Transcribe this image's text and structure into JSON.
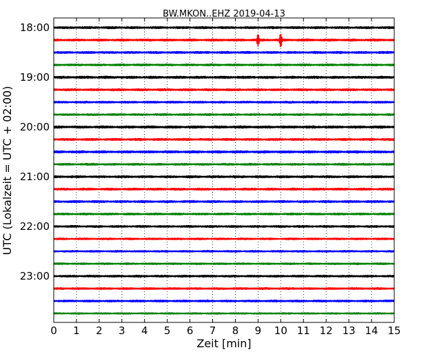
{
  "chart_data": {
    "type": "line",
    "title": "BW.MKON..EHZ 2019-04-13",
    "xlabel": "Zeit  [min]",
    "ylabel": "UTC (Lokalzeit = UTC + 02:00)",
    "xlim": [
      0,
      15
    ],
    "x_ticks": [
      "0",
      "1",
      "2",
      "3",
      "4",
      "5",
      "6",
      "7",
      "8",
      "9",
      "10",
      "11",
      "12",
      "13",
      "14",
      "15"
    ],
    "y_tick_labels": [
      "18:00",
      "19:00",
      "20:00",
      "21:00",
      "22:00",
      "23:00"
    ],
    "y_tick_rows": [
      0,
      4,
      8,
      12,
      16,
      20
    ],
    "grid": "vertical-dotted",
    "series": [
      {
        "start": "18:00",
        "color": "#000000",
        "amplitude": 0.55
      },
      {
        "start": "18:15",
        "color": "#ff0000",
        "amplitude": 0.55,
        "events": [
          {
            "x": 9.0,
            "amp": 3.2
          },
          {
            "x": 10.0,
            "amp": 4.0
          }
        ]
      },
      {
        "start": "18:30",
        "color": "#0000ff",
        "amplitude": 0.55
      },
      {
        "start": "18:45",
        "color": "#008000",
        "amplitude": 0.5
      },
      {
        "start": "19:00",
        "color": "#000000",
        "amplitude": 0.6
      },
      {
        "start": "19:15",
        "color": "#ff0000",
        "amplitude": 0.55
      },
      {
        "start": "19:30",
        "color": "#0000ff",
        "amplitude": 0.5
      },
      {
        "start": "19:45",
        "color": "#008000",
        "amplitude": 0.5
      },
      {
        "start": "20:00",
        "color": "#000000",
        "amplitude": 0.6
      },
      {
        "start": "20:15",
        "color": "#ff0000",
        "amplitude": 0.55
      },
      {
        "start": "20:30",
        "color": "#0000ff",
        "amplitude": 0.6
      },
      {
        "start": "20:45",
        "color": "#008000",
        "amplitude": 0.5
      },
      {
        "start": "21:00",
        "color": "#000000",
        "amplitude": 0.55
      },
      {
        "start": "21:15",
        "color": "#ff0000",
        "amplitude": 0.55
      },
      {
        "start": "21:30",
        "color": "#0000ff",
        "amplitude": 0.55
      },
      {
        "start": "21:45",
        "color": "#008000",
        "amplitude": 0.5
      },
      {
        "start": "22:00",
        "color": "#000000",
        "amplitude": 0.5
      },
      {
        "start": "22:15",
        "color": "#ff0000",
        "amplitude": 0.45
      },
      {
        "start": "22:30",
        "color": "#0000ff",
        "amplitude": 0.45
      },
      {
        "start": "22:45",
        "color": "#008000",
        "amplitude": 0.45
      },
      {
        "start": "23:00",
        "color": "#000000",
        "amplitude": 0.5
      },
      {
        "start": "23:15",
        "color": "#ff0000",
        "amplitude": 0.5
      },
      {
        "start": "23:30",
        "color": "#0000ff",
        "amplitude": 0.5
      },
      {
        "start": "23:45",
        "color": "#008000",
        "amplitude": 0.4
      }
    ]
  }
}
